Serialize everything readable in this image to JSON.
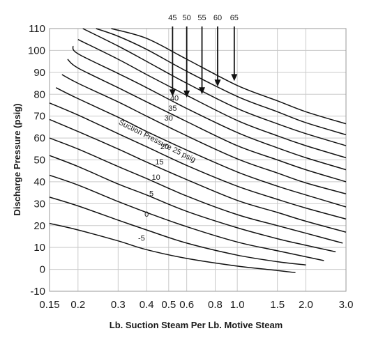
{
  "chart_data": {
    "type": "line",
    "xlabel": "Lb. Suction Steam Per Lb. Motive Steam",
    "ylabel": "Discharge Pressure (psig)",
    "x_scale": "log",
    "xlim": [
      0.15,
      3.0
    ],
    "ylim": [
      -10,
      110
    ],
    "x_ticks": [
      "0.15",
      "0.2",
      "0.3",
      "0.4",
      "0.5",
      "0.6",
      "0.8",
      "1.0",
      "1.5",
      "2.0",
      "3.0"
    ],
    "y_ticks": [
      "110",
      "100",
      "90",
      "80",
      "70",
      "60",
      "50",
      "40",
      "30",
      "20",
      "10",
      "0",
      "-10"
    ],
    "grid": true,
    "series_label_title": "Suction Pressure 25 psig",
    "series": [
      {
        "name": "-5",
        "x": [
          0.15,
          0.2,
          0.3,
          0.4,
          0.6,
          1.0,
          1.5,
          1.8
        ],
        "y": [
          21,
          18,
          13,
          9,
          5,
          1.5,
          -0.5,
          -1.5
        ]
      },
      {
        "name": "0",
        "x": [
          0.15,
          0.2,
          0.3,
          0.4,
          0.6,
          1.0,
          1.5,
          2.0
        ],
        "y": [
          33,
          29,
          22.5,
          18,
          12,
          6.5,
          3.5,
          2
        ]
      },
      {
        "name": "5",
        "x": [
          0.15,
          0.2,
          0.3,
          0.4,
          0.6,
          1.0,
          1.5,
          2.4
        ],
        "y": [
          43,
          38.5,
          31,
          26,
          19.5,
          12.5,
          8.5,
          4
        ]
      },
      {
        "name": "10",
        "x": [
          0.15,
          0.2,
          0.3,
          0.4,
          0.6,
          1.0,
          1.5,
          2.0,
          2.7
        ],
        "y": [
          52,
          47,
          39,
          34,
          26.5,
          19,
          14,
          11,
          8
        ]
      },
      {
        "name": "15",
        "x": [
          0.15,
          0.2,
          0.3,
          0.4,
          0.6,
          1.0,
          1.5,
          2.0,
          2.9
        ],
        "y": [
          60,
          55,
          47,
          41.5,
          33.5,
          25,
          20,
          16.5,
          12
        ]
      },
      {
        "name": "20",
        "x": [
          0.15,
          0.2,
          0.3,
          0.4,
          0.6,
          1.0,
          1.5,
          2.0,
          3.0
        ],
        "y": [
          68.5,
          63,
          55,
          49,
          41,
          31.5,
          26,
          22,
          17
        ]
      },
      {
        "name": "25",
        "x": [
          0.15,
          0.2,
          0.3,
          0.4,
          0.6,
          1.0,
          1.5,
          2.0,
          3.0
        ],
        "y": [
          76,
          70.5,
          62,
          56,
          47.5,
          38,
          32,
          28,
          23
        ]
      },
      {
        "name": "30",
        "x": [
          0.16,
          0.2,
          0.3,
          0.4,
          0.6,
          1.0,
          1.5,
          2.0,
          3.0
        ],
        "y": [
          83,
          78,
          69.5,
          63,
          54.5,
          44.5,
          38,
          34,
          28.5
        ]
      },
      {
        "name": "35",
        "x": [
          0.17,
          0.2,
          0.3,
          0.4,
          0.6,
          1.0,
          1.5,
          2.0,
          3.0
        ],
        "y": [
          89,
          85,
          76.5,
          70,
          61,
          50.5,
          44,
          39.5,
          34.5
        ]
      },
      {
        "name": "40",
        "x": [
          0.18,
          0.2,
          0.3,
          0.4,
          0.6,
          1.0,
          1.5,
          2.0,
          3.0
        ],
        "y": [
          96,
          92,
          83,
          76.5,
          67.5,
          56.5,
          50,
          45.5,
          40
        ]
      },
      {
        "name": "45",
        "x": [
          0.19,
          0.2,
          0.3,
          0.4,
          0.6,
          1.0,
          1.5,
          2.0,
          3.0
        ],
        "y": [
          102,
          98.5,
          89.5,
          83,
          73.5,
          62.5,
          55.5,
          51,
          45.5
        ]
      },
      {
        "name": "50",
        "x": [
          0.2,
          0.3,
          0.4,
          0.6,
          1.0,
          1.5,
          2.0,
          3.0
        ],
        "y": [
          105,
          96,
          89,
          79.5,
          68,
          61,
          56.5,
          51
        ]
      },
      {
        "name": "55",
        "x": [
          0.21,
          0.3,
          0.4,
          0.6,
          1.0,
          1.5,
          2.0,
          3.0
        ],
        "y": [
          110,
          102,
          95,
          85,
          73.5,
          66.5,
          62,
          56.5
        ]
      },
      {
        "name": "60",
        "x": [
          0.24,
          0.3,
          0.4,
          0.6,
          1.0,
          1.5,
          2.0,
          3.0
        ],
        "y": [
          110,
          106.5,
          100.5,
          90.5,
          79,
          72,
          67,
          61.5
        ]
      },
      {
        "name": "65",
        "x": [
          0.28,
          0.4,
          0.6,
          1.0,
          1.5,
          2.0,
          3.0
        ],
        "y": [
          110,
          105.5,
          96,
          84,
          77,
          72,
          66.5
        ]
      }
    ],
    "curve_labels": [
      {
        "text": "-5",
        "x": 0.38,
        "y": 13
      },
      {
        "text": "0",
        "x": 0.4,
        "y": 24
      },
      {
        "text": "5",
        "x": 0.42,
        "y": 33.5
      },
      {
        "text": "10",
        "x": 0.44,
        "y": 41
      },
      {
        "text": "15",
        "x": 0.455,
        "y": 48
      },
      {
        "text": "20",
        "x": 0.48,
        "y": 55
      },
      {
        "text": "30",
        "x": 0.5,
        "y": 68
      },
      {
        "text": "35",
        "x": 0.52,
        "y": 72.5
      },
      {
        "text": "40",
        "x": 0.53,
        "y": 77
      }
    ],
    "arrows": [
      {
        "label": "45",
        "x": 0.52,
        "y_end": 79
      },
      {
        "label": "50",
        "x": 0.6,
        "y_end": 78.5
      },
      {
        "label": "55",
        "x": 0.7,
        "y_end": 80
      },
      {
        "label": "60",
        "x": 0.82,
        "y_end": 83.5
      },
      {
        "label": "65",
        "x": 0.97,
        "y_end": 86
      }
    ]
  }
}
